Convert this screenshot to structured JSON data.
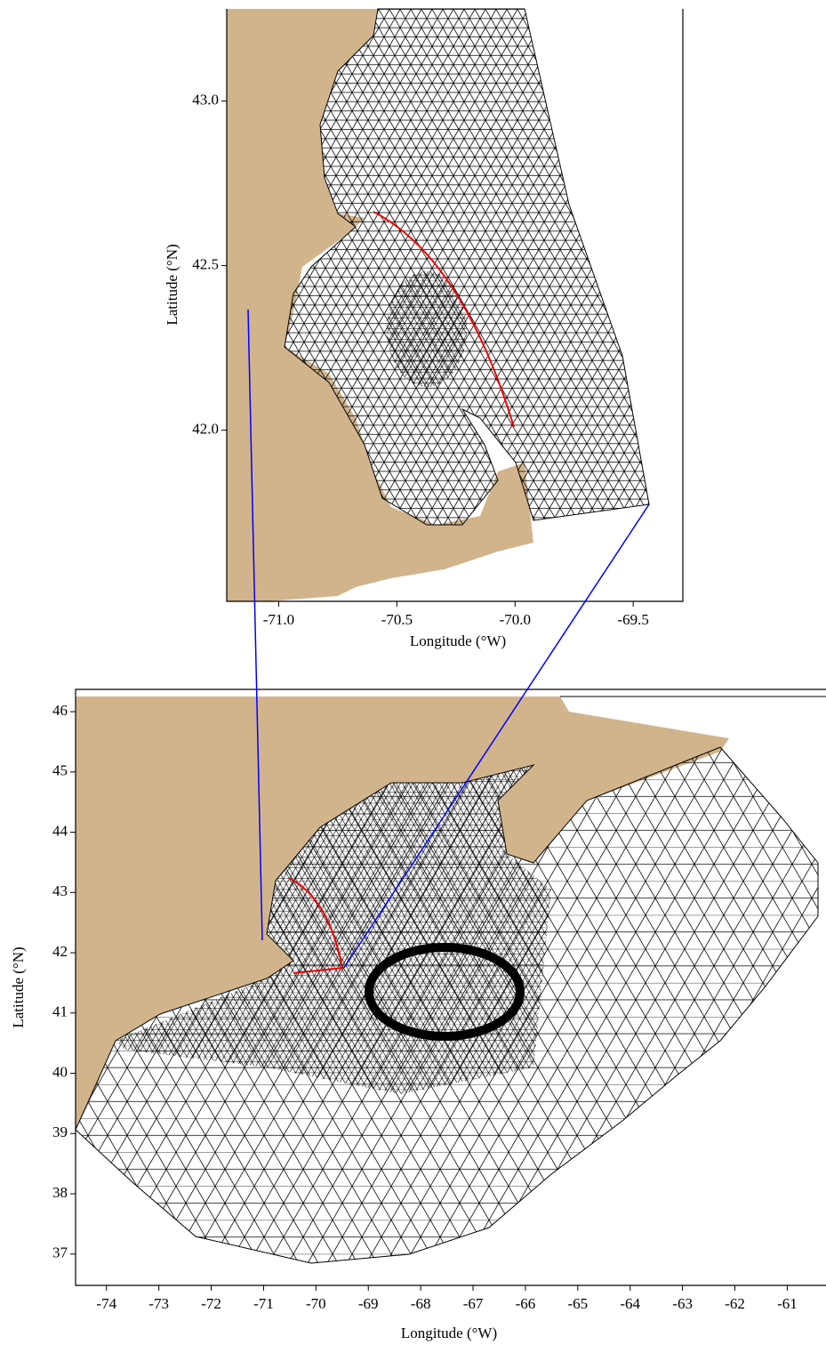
{
  "chart_data": [
    {
      "type": "map",
      "xlabel": "Longitude (°W)",
      "ylabel": "Latitude (°N)",
      "xlim": [
        -71.22,
        -69.29
      ],
      "ylim": [
        41.48,
        43.28
      ],
      "xticks": [
        {
          "value": -71,
          "label": "-71.0"
        },
        -70.5,
        {
          "value": -70,
          "label": "-70.0"
        },
        -69.5
      ],
      "yticks": [
        {
          "value": 42,
          "label": "42.0"
        },
        42.5,
        {
          "value": 43,
          "label": "43.0"
        }
      ]
    },
    {
      "type": "map",
      "xlabel": "Longitude (°W)",
      "ylabel": "Latitude (°N)",
      "xlim": [
        -74.59,
        -60.26
      ],
      "ylim": [
        36.48,
        46.37
      ],
      "xticks": [
        -74,
        -73,
        -72,
        -71,
        -70,
        -69,
        -68,
        -67,
        -66,
        -65,
        -64,
        -63,
        -62,
        -61
      ],
      "yticks": [
        37,
        38,
        39,
        40,
        41,
        42,
        43,
        44,
        45,
        46
      ]
    }
  ]
}
